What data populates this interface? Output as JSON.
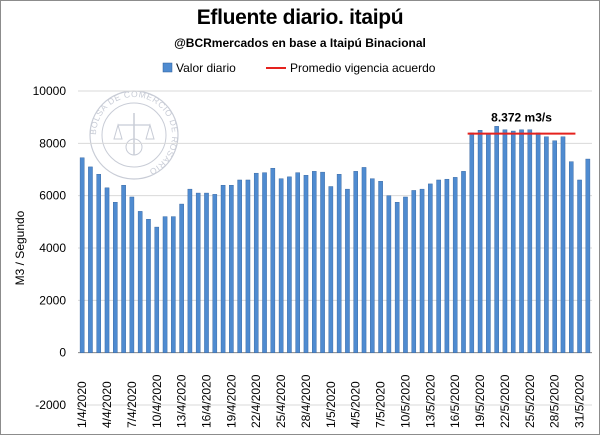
{
  "header": {
    "title": "Efluente diario. itaipú",
    "subtitle": "@BCRmercados en base a Itaipú Binacional"
  },
  "watermark": {
    "text": "BOLSA DE COMERCIO DE ROSARIO",
    "color": "#c8ccd6"
  },
  "chart_data": {
    "type": "bar",
    "title": "Efluente diario. itaipú",
    "subtitle": "@BCRmercados en base a Itaipú Binacional",
    "ylabel": "M3 / Segundo",
    "xlabel": "",
    "ylim": [
      -2000,
      10000
    ],
    "yticks": [
      -2000,
      0,
      2000,
      4000,
      6000,
      8000,
      10000
    ],
    "grid": true,
    "legend_position": "top",
    "tick_labels": [
      "1/4/2020",
      "4/4/2020",
      "7/4/2020",
      "10/4/2020",
      "13/4/2020",
      "16/4/2020",
      "19/4/2020",
      "22/4/2020",
      "25/4/2020",
      "28/4/2020",
      "1/5/2020",
      "4/5/2020",
      "7/5/2020",
      "10/5/2020",
      "13/5/2020",
      "16/5/2020",
      "19/5/2020",
      "22/5/2020",
      "25/5/2020",
      "28/5/2020",
      "31/5/2020"
    ],
    "tick_every": 3,
    "categories": [
      "1/4/2020",
      "2/4/2020",
      "3/4/2020",
      "4/4/2020",
      "5/4/2020",
      "6/4/2020",
      "7/4/2020",
      "8/4/2020",
      "9/4/2020",
      "10/4/2020",
      "11/4/2020",
      "12/4/2020",
      "13/4/2020",
      "14/4/2020",
      "15/4/2020",
      "16/4/2020",
      "17/4/2020",
      "18/4/2020",
      "19/4/2020",
      "20/4/2020",
      "21/4/2020",
      "22/4/2020",
      "23/4/2020",
      "24/4/2020",
      "25/4/2020",
      "26/4/2020",
      "27/4/2020",
      "28/4/2020",
      "29/4/2020",
      "30/4/2020",
      "1/5/2020",
      "2/5/2020",
      "3/5/2020",
      "4/5/2020",
      "5/5/2020",
      "6/5/2020",
      "7/5/2020",
      "8/5/2020",
      "9/5/2020",
      "10/5/2020",
      "11/5/2020",
      "12/5/2020",
      "13/5/2020",
      "14/5/2020",
      "15/5/2020",
      "16/5/2020",
      "17/5/2020",
      "18/5/2020",
      "19/5/2020",
      "20/5/2020",
      "21/5/2020",
      "22/5/2020",
      "23/5/2020",
      "24/5/2020",
      "25/5/2020",
      "26/5/2020",
      "27/5/2020",
      "28/5/2020",
      "29/5/2020",
      "30/5/2020",
      "31/5/2020",
      "1/6/2020"
    ],
    "series": [
      {
        "name": "Valor diario",
        "color": "#4f8bd0",
        "values": [
          7450,
          7100,
          6820,
          6300,
          5750,
          6400,
          5950,
          5400,
          5100,
          4800,
          5200,
          5200,
          5680,
          6250,
          6100,
          6100,
          6050,
          6400,
          6400,
          6600,
          6600,
          6860,
          6880,
          7050,
          6650,
          6720,
          6880,
          6780,
          6930,
          6900,
          6350,
          6820,
          6250,
          6930,
          7080,
          6650,
          6550,
          6000,
          5750,
          5950,
          6200,
          6250,
          6450,
          6600,
          6630,
          6700,
          6930,
          8400,
          8500,
          8370,
          8650,
          8520,
          8470,
          8520,
          8520,
          8400,
          8250,
          8100,
          8250,
          7300,
          6600,
          7400
        ]
      },
      {
        "name": "Promedio vigencia acuerdo",
        "color": "#e5221e",
        "value": 8372,
        "from": "18/5/2020",
        "to": "30/5/2020"
      }
    ],
    "annotations": [
      {
        "text": "8.372 m3/s",
        "value": 8372
      }
    ]
  }
}
